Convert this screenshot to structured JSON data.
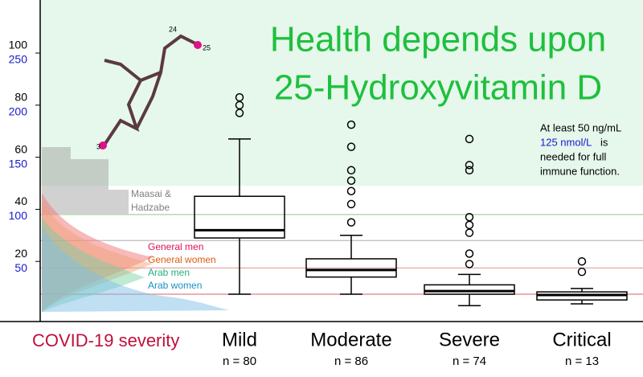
{
  "chart_data": {
    "type": "box",
    "title_lines": [
      "Health depends upon",
      "25-Hydroxyvitamin D"
    ],
    "x_label": "COVID-19 severity",
    "categories": [
      "Mild",
      "Moderate",
      "Severe",
      "Critical"
    ],
    "n_labels": [
      "n = 80",
      "n = 86",
      "n = 74",
      "n = 13"
    ],
    "series": [
      {
        "whisker_low": 7.4,
        "q1": 29,
        "median": 32,
        "q3": 45,
        "whisker_high": 67,
        "outliers": [
          77,
          80,
          83
        ]
      },
      {
        "whisker_low": 7.4,
        "q1": 14,
        "median": 16.7,
        "q3": 21,
        "whisker_high": 30,
        "outliers": [
          35,
          42,
          47,
          51,
          55,
          64,
          72.5
        ]
      },
      {
        "whisker_low": 3,
        "q1": 7.4,
        "median": 8.6,
        "q3": 11,
        "whisker_high": 15,
        "outliers": [
          19,
          23,
          31,
          34,
          37,
          55,
          57,
          67
        ]
      },
      {
        "whisker_low": 3.7,
        "q1": 5.2,
        "median": 7.1,
        "q3": 8.3,
        "whisker_high": 9.6,
        "outliers": [
          16,
          20
        ]
      }
    ],
    "box_color": "#000000",
    "ylim": [
      0,
      118
    ],
    "yticks": [
      20,
      40,
      60,
      80,
      100
    ],
    "y2lim": [
      0,
      295
    ],
    "y2ticks": [
      50,
      100,
      150,
      200,
      250
    ],
    "y2_color": "#1a1acc",
    "threshold": 49,
    "threshold_color": "#e6f7ec",
    "reference_lines": [
      {
        "value": 38,
        "color": "#9fd39f"
      },
      {
        "value": 28,
        "color": "#bbbbbb"
      },
      {
        "value": 17.5,
        "color": "#e0a0a0"
      },
      {
        "value": 7.4,
        "color": "#e08080"
      }
    ],
    "annotation": {
      "line1": "At least 50 ng/mL",
      "line2a": "125 nmol/L",
      "line2b": "is",
      "line3": "needed for full",
      "line4": "immune function."
    },
    "populations": [
      {
        "name": "Maasai &",
        "color": "#808080"
      },
      {
        "name": "Hadzabe",
        "color": "#808080"
      },
      {
        "name": "General men",
        "color": "#e0105a"
      },
      {
        "name": "General women",
        "color": "#e05a10"
      },
      {
        "name": "Arab men",
        "color": "#20b080"
      },
      {
        "name": "Arab women",
        "color": "#1a90c8"
      }
    ],
    "molecule_labels": [
      "24",
      "25",
      "3"
    ]
  }
}
